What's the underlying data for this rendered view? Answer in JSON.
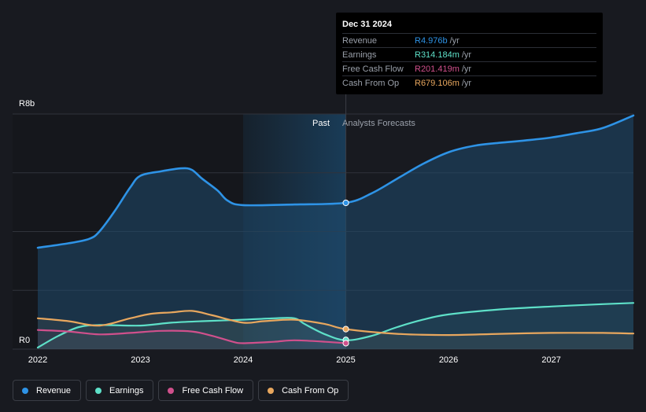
{
  "chart_data": {
    "type": "area",
    "y_unit_label_top": "R8b",
    "y_unit_label_bottom": "R0",
    "ylim": [
      0,
      8
    ],
    "xlim": [
      2022,
      2027.8
    ],
    "x_ticks": [
      "2022",
      "2023",
      "2024",
      "2025",
      "2026",
      "2027"
    ],
    "x_tick_values": [
      2022,
      2023,
      2024,
      2025,
      2026,
      2027
    ],
    "past_label": "Past",
    "forecast_label": "Analysts Forecasts",
    "past_start": 2024.0,
    "divider_x": 2025.0,
    "series": [
      {
        "name": "Revenue",
        "color": "#2e93e6",
        "filled": true,
        "x": [
          2022.0,
          2022.3,
          2022.5,
          2022.6,
          2022.75,
          2022.9,
          2023.0,
          2023.2,
          2023.4,
          2023.5,
          2023.6,
          2023.75,
          2023.85,
          2024.0,
          2024.5,
          2025.0,
          2025.25,
          2025.5,
          2025.75,
          2026.0,
          2026.25,
          2026.5,
          2026.75,
          2027.0,
          2027.25,
          2027.5,
          2027.8
        ],
        "values": [
          3.45,
          3.6,
          3.75,
          4.0,
          4.7,
          5.5,
          5.9,
          6.05,
          6.15,
          6.1,
          5.8,
          5.4,
          5.05,
          4.9,
          4.92,
          4.98,
          5.3,
          5.8,
          6.3,
          6.7,
          6.92,
          7.02,
          7.1,
          7.2,
          7.35,
          7.52,
          7.95
        ]
      },
      {
        "name": "Earnings",
        "color": "#5ee0c8",
        "filled": false,
        "x": [
          2022.0,
          2022.2,
          2022.4,
          2022.6,
          2023.0,
          2023.3,
          2023.6,
          2024.0,
          2024.3,
          2024.5,
          2024.6,
          2024.8,
          2025.0,
          2025.25,
          2025.5,
          2025.75,
          2026.0,
          2026.5,
          2027.0,
          2027.5,
          2027.8
        ],
        "values": [
          0.05,
          0.45,
          0.75,
          0.82,
          0.8,
          0.9,
          0.95,
          1.0,
          1.05,
          1.05,
          0.85,
          0.5,
          0.3,
          0.45,
          0.75,
          1.0,
          1.18,
          1.35,
          1.45,
          1.53,
          1.57
        ]
      },
      {
        "name": "Free Cash Flow",
        "color": "#d0508c",
        "filled": false,
        "x": [
          2022.0,
          2022.3,
          2022.6,
          2022.9,
          2023.2,
          2023.5,
          2023.7,
          2023.9,
          2024.0,
          2024.3,
          2024.5,
          2024.8,
          2025.0
        ],
        "values": [
          0.65,
          0.6,
          0.5,
          0.55,
          0.62,
          0.6,
          0.45,
          0.25,
          0.2,
          0.25,
          0.3,
          0.25,
          0.2
        ]
      },
      {
        "name": "Cash From Op",
        "color": "#e8a75e",
        "filled": false,
        "x": [
          2022.0,
          2022.3,
          2022.6,
          2022.9,
          2023.1,
          2023.3,
          2023.5,
          2023.7,
          2024.0,
          2024.2,
          2024.5,
          2024.8,
          2025.0,
          2025.5,
          2026.0,
          2026.5,
          2027.0,
          2027.5,
          2027.8
        ],
        "values": [
          1.05,
          0.95,
          0.8,
          1.05,
          1.2,
          1.25,
          1.3,
          1.15,
          0.9,
          0.95,
          1.0,
          0.85,
          0.68,
          0.52,
          0.48,
          0.52,
          0.55,
          0.55,
          0.53
        ]
      }
    ],
    "markers": [
      {
        "series": "Revenue",
        "x": 2025.0,
        "value": 4.976
      },
      {
        "series": "Earnings",
        "x": 2025.0,
        "value": 0.314
      },
      {
        "series": "Free Cash Flow",
        "x": 2025.0,
        "value": 0.201
      },
      {
        "series": "Cash From Op",
        "x": 2025.0,
        "value": 0.679
      }
    ]
  },
  "tooltip": {
    "date": "Dec 31 2024",
    "rows": [
      {
        "name": "Revenue",
        "value": "R4.976b",
        "unit": "/yr",
        "color": "#2e93e6"
      },
      {
        "name": "Earnings",
        "value": "R314.184m",
        "unit": "/yr",
        "color": "#5ee0c8"
      },
      {
        "name": "Free Cash Flow",
        "value": "R201.419m",
        "unit": "/yr",
        "color": "#d0508c"
      },
      {
        "name": "Cash From Op",
        "value": "R679.106m",
        "unit": "/yr",
        "color": "#e8a75e"
      }
    ]
  },
  "legend": [
    {
      "label": "Revenue",
      "color": "#2e93e6"
    },
    {
      "label": "Earnings",
      "color": "#5ee0c8"
    },
    {
      "label": "Free Cash Flow",
      "color": "#d0508c"
    },
    {
      "label": "Cash From Op",
      "color": "#e8a75e"
    }
  ]
}
